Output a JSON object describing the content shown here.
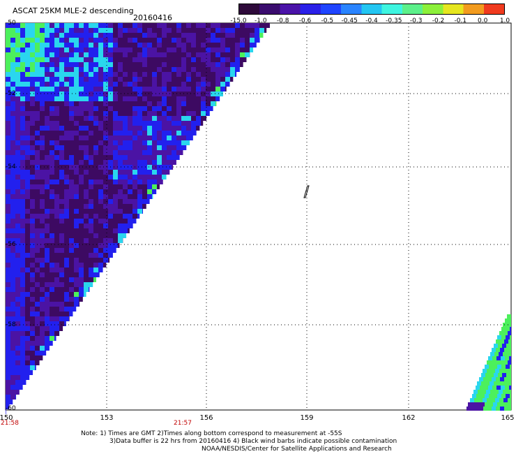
{
  "header": {
    "title": "ASCAT 25KM MLE-2 descending",
    "date": "20160416"
  },
  "colorbar": {
    "labels": [
      "-15.0",
      "-1.0",
      "-0.8",
      "-0.6",
      "-0.5",
      "-0.45",
      "-0.4",
      "-0.35",
      "-0.3",
      "-0.2",
      "-0.1",
      "0.0",
      "1.0"
    ],
    "colors": [
      "#2e0a3a",
      "#3a0c6e",
      "#4a13a8",
      "#2a20e8",
      "#1f44ff",
      "#2a84ff",
      "#23c6f2",
      "#3ef5e0",
      "#5cf08a",
      "#8cf03a",
      "#e6e61f",
      "#f29b1e",
      "#f03a1e"
    ]
  },
  "axes": {
    "lat_labels": [
      "-50",
      "-52",
      "-54",
      "-56",
      "-58",
      "-60"
    ],
    "lon_labels": [
      "150",
      "153",
      "156",
      "159",
      "162",
      "165"
    ]
  },
  "swath_colors": {
    "deep": "#3d0a62",
    "mid": "#4b13a4",
    "blue": "#2220ee",
    "cyan": "#2ad6ee",
    "green": "#4cf05c"
  },
  "times": {
    "left": "21:58",
    "mid": "21:57"
  },
  "notes": [
    "Note: 1) Times are GMT 2)Times along bottom correspond to measurement at -55S",
    "3)Data buffer is 22 hrs from 20160416 4) Black wind barbs indicate possible contamination",
    "NOAA/NESDIS/Center for Satellite Applications and Research"
  ]
}
